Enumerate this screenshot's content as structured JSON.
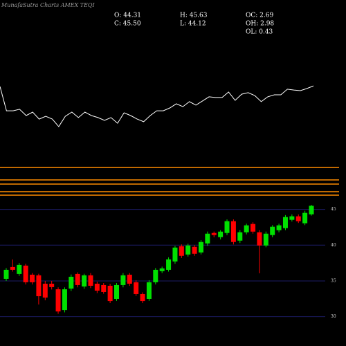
{
  "header": {
    "title": "MunafaSutra Charts AMEX TEQI",
    "stats": [
      "O: 44.31",
      "H: 45.63",
      "OC: 2.69",
      "C: 45.50",
      "L: 44.12",
      "OH: 2.98",
      "OL: 0.43"
    ]
  },
  "chart_data": [
    {
      "type": "line",
      "color": "#ffffff",
      "values": [
        47.9,
        33.3,
        33.3,
        34.2,
        30.4,
        32.5,
        28.3,
        30.0,
        28.3,
        23.8,
        30.0,
        32.5,
        29.2,
        32.5,
        30.4,
        29.2,
        27.5,
        29.2,
        25.8,
        32.1,
        30.4,
        28.3,
        26.7,
        30.4,
        33.3,
        33.3,
        35.0,
        37.5,
        35.8,
        38.8,
        36.7,
        39.2,
        41.7,
        41.3,
        41.3,
        44.6,
        39.6,
        43.3,
        44.2,
        42.5,
        38.8,
        41.7,
        42.9,
        42.9,
        46.3,
        45.8,
        45.4,
        46.7,
        48.3
      ],
      "ylim": [
        0,
        100
      ]
    },
    {
      "type": "candlestick",
      "up_color": "#00e000",
      "down_color": "#ff0000",
      "grid_color": "#1c1c66",
      "open": [
        35.29,
        36.94,
        35.97,
        37.14,
        35.87,
        35.78,
        34.61,
        34.61,
        33.83,
        30.92,
        33.93,
        35.97,
        34.22,
        35.78,
        34.61,
        34.42,
        34.32,
        32.48,
        34.42,
        35.87,
        34.81,
        33.16,
        32.48,
        34.81,
        36.36,
        36.55,
        37.72,
        39.85,
        38.69,
        39.76,
        38.98,
        40.24,
        41.7,
        41.12,
        41.7,
        43.35,
        40.63,
        41.8,
        42.96,
        41.8,
        39.95,
        41.41,
        42.09,
        42.38,
        43.54,
        44.03,
        43.06,
        44.31
      ],
      "high": [
        36.8,
        38.0,
        37.5,
        37.4,
        36.1,
        36.0,
        35.0,
        35.0,
        34.1,
        34.1,
        35.9,
        36.2,
        36.0,
        36.1,
        34.9,
        34.7,
        34.6,
        34.7,
        36.1,
        36.1,
        35.1,
        33.4,
        35.1,
        36.8,
        37.0,
        38.3,
        39.9,
        40.1,
        40.2,
        40.0,
        40.7,
        41.9,
        41.9,
        42.1,
        43.6,
        43.6,
        42.1,
        43.0,
        43.2,
        42.1,
        41.9,
        42.8,
        43.0,
        44.2,
        44.3,
        44.3,
        44.8,
        45.63
      ],
      "low": [
        35.0,
        36.3,
        35.7,
        34.5,
        34.5,
        31.7,
        32.3,
        33.8,
        30.4,
        30.6,
        33.6,
        34.1,
        33.9,
        34.0,
        33.3,
        33.2,
        31.9,
        32.2,
        34.1,
        34.3,
        32.9,
        31.9,
        32.2,
        34.5,
        36.1,
        36.3,
        37.4,
        38.2,
        38.4,
        38.5,
        38.7,
        39.9,
        41.1,
        40.8,
        41.4,
        40.1,
        40.3,
        41.5,
        41.6,
        36.07,
        39.7,
        41.1,
        41.8,
        42.1,
        43.3,
        43.1,
        42.8,
        44.12
      ],
      "close": [
        36.55,
        36.55,
        37.23,
        34.81,
        34.81,
        32.86,
        32.67,
        34.13,
        30.73,
        33.83,
        35.58,
        34.42,
        35.78,
        34.32,
        33.64,
        33.45,
        32.18,
        34.42,
        35.78,
        34.61,
        33.16,
        32.18,
        34.81,
        36.55,
        36.75,
        38.01,
        39.66,
        38.5,
        39.95,
        38.79,
        40.44,
        41.6,
        41.41,
        41.89,
        43.35,
        40.44,
        41.8,
        42.77,
        41.89,
        39.95,
        41.6,
        42.57,
        42.77,
        43.93,
        44.03,
        43.35,
        44.51,
        45.5
      ],
      "ylim": [
        25.9,
        46.7
      ],
      "yticks": [
        30,
        35,
        40,
        45
      ],
      "grid": true
    }
  ]
}
